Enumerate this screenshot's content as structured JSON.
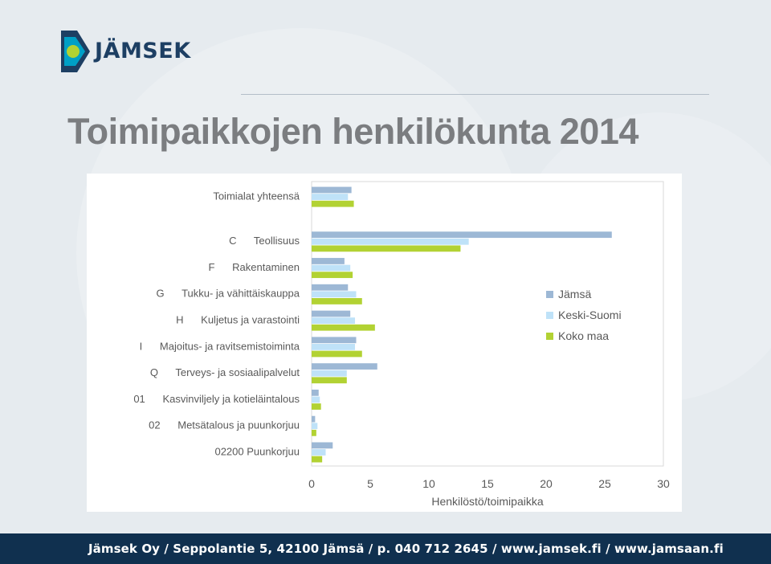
{
  "brand": {
    "logo_text": "JÄMSEK",
    "colors": {
      "navy": "#1d3f63",
      "lime": "#b2d233",
      "teal": "#00a0c6"
    }
  },
  "header": {
    "title": "Toimipaikkojen henkilökunta 2014"
  },
  "chart_data": {
    "type": "bar",
    "orientation": "horizontal",
    "categories": [
      "Toimialat yhteensä",
      "C      Teollisuus",
      "F      Rakentaminen",
      "G      Tukku- ja vähittäiskauppa",
      "H      Kuljetus ja varastointi",
      "I      Majoitus- ja ravitsemistoiminta",
      "Q      Terveys- ja sosiaalipalvelut",
      "01      Kasvinviljely ja kotieläintalous",
      "02      Metsätalous ja puunkorjuu",
      "02200 Puunkorjuu"
    ],
    "series": [
      {
        "name": "Jämsä",
        "color": "#9db8d5",
        "values": [
          3.4,
          25.6,
          2.8,
          3.1,
          3.3,
          3.8,
          5.6,
          0.6,
          0.3,
          1.8
        ]
      },
      {
        "name": "Keski-Suomi",
        "color": "#bfe2f8",
        "values": [
          3.1,
          13.4,
          3.3,
          3.8,
          3.7,
          3.7,
          3.0,
          0.7,
          0.5,
          1.2
        ]
      },
      {
        "name": "Koko maa",
        "color": "#b2d233",
        "values": [
          3.6,
          12.7,
          3.5,
          4.3,
          5.4,
          4.3,
          3.0,
          0.8,
          0.4,
          0.9
        ]
      }
    ],
    "xlabel": "Henkilöstö/toimipaikka",
    "xlim": [
      0,
      30
    ],
    "xticks": [
      0,
      5,
      10,
      15,
      20,
      25,
      30
    ],
    "legend": "right",
    "grid": false
  },
  "footer": {
    "text": "Jämsek Oy  /  Seppolantie 5, 42100 Jämsä  /  p. 040 712 2645  /  www.jamsek.fi  /  www.jamsaan.fi"
  }
}
